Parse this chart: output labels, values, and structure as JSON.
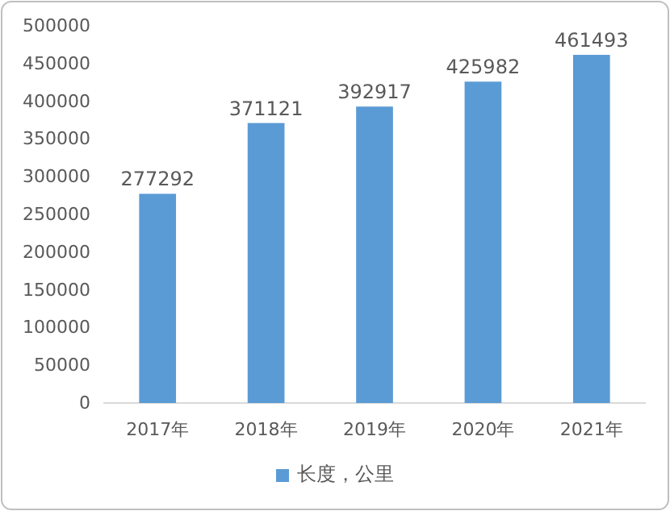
{
  "chart_data": {
    "type": "bar",
    "categories": [
      "2017年",
      "2018年",
      "2019年",
      "2020年",
      "2021年"
    ],
    "series": [
      {
        "name": "长度，公里",
        "color": "#5b9bd5",
        "values": [
          277292,
          371121,
          392917,
          425982,
          461493
        ]
      }
    ],
    "ylim": [
      0,
      500000
    ],
    "yticks": [
      0,
      50000,
      100000,
      150000,
      200000,
      250000,
      300000,
      350000,
      400000,
      450000,
      500000
    ],
    "data_labels": true,
    "legend": "bottom"
  }
}
